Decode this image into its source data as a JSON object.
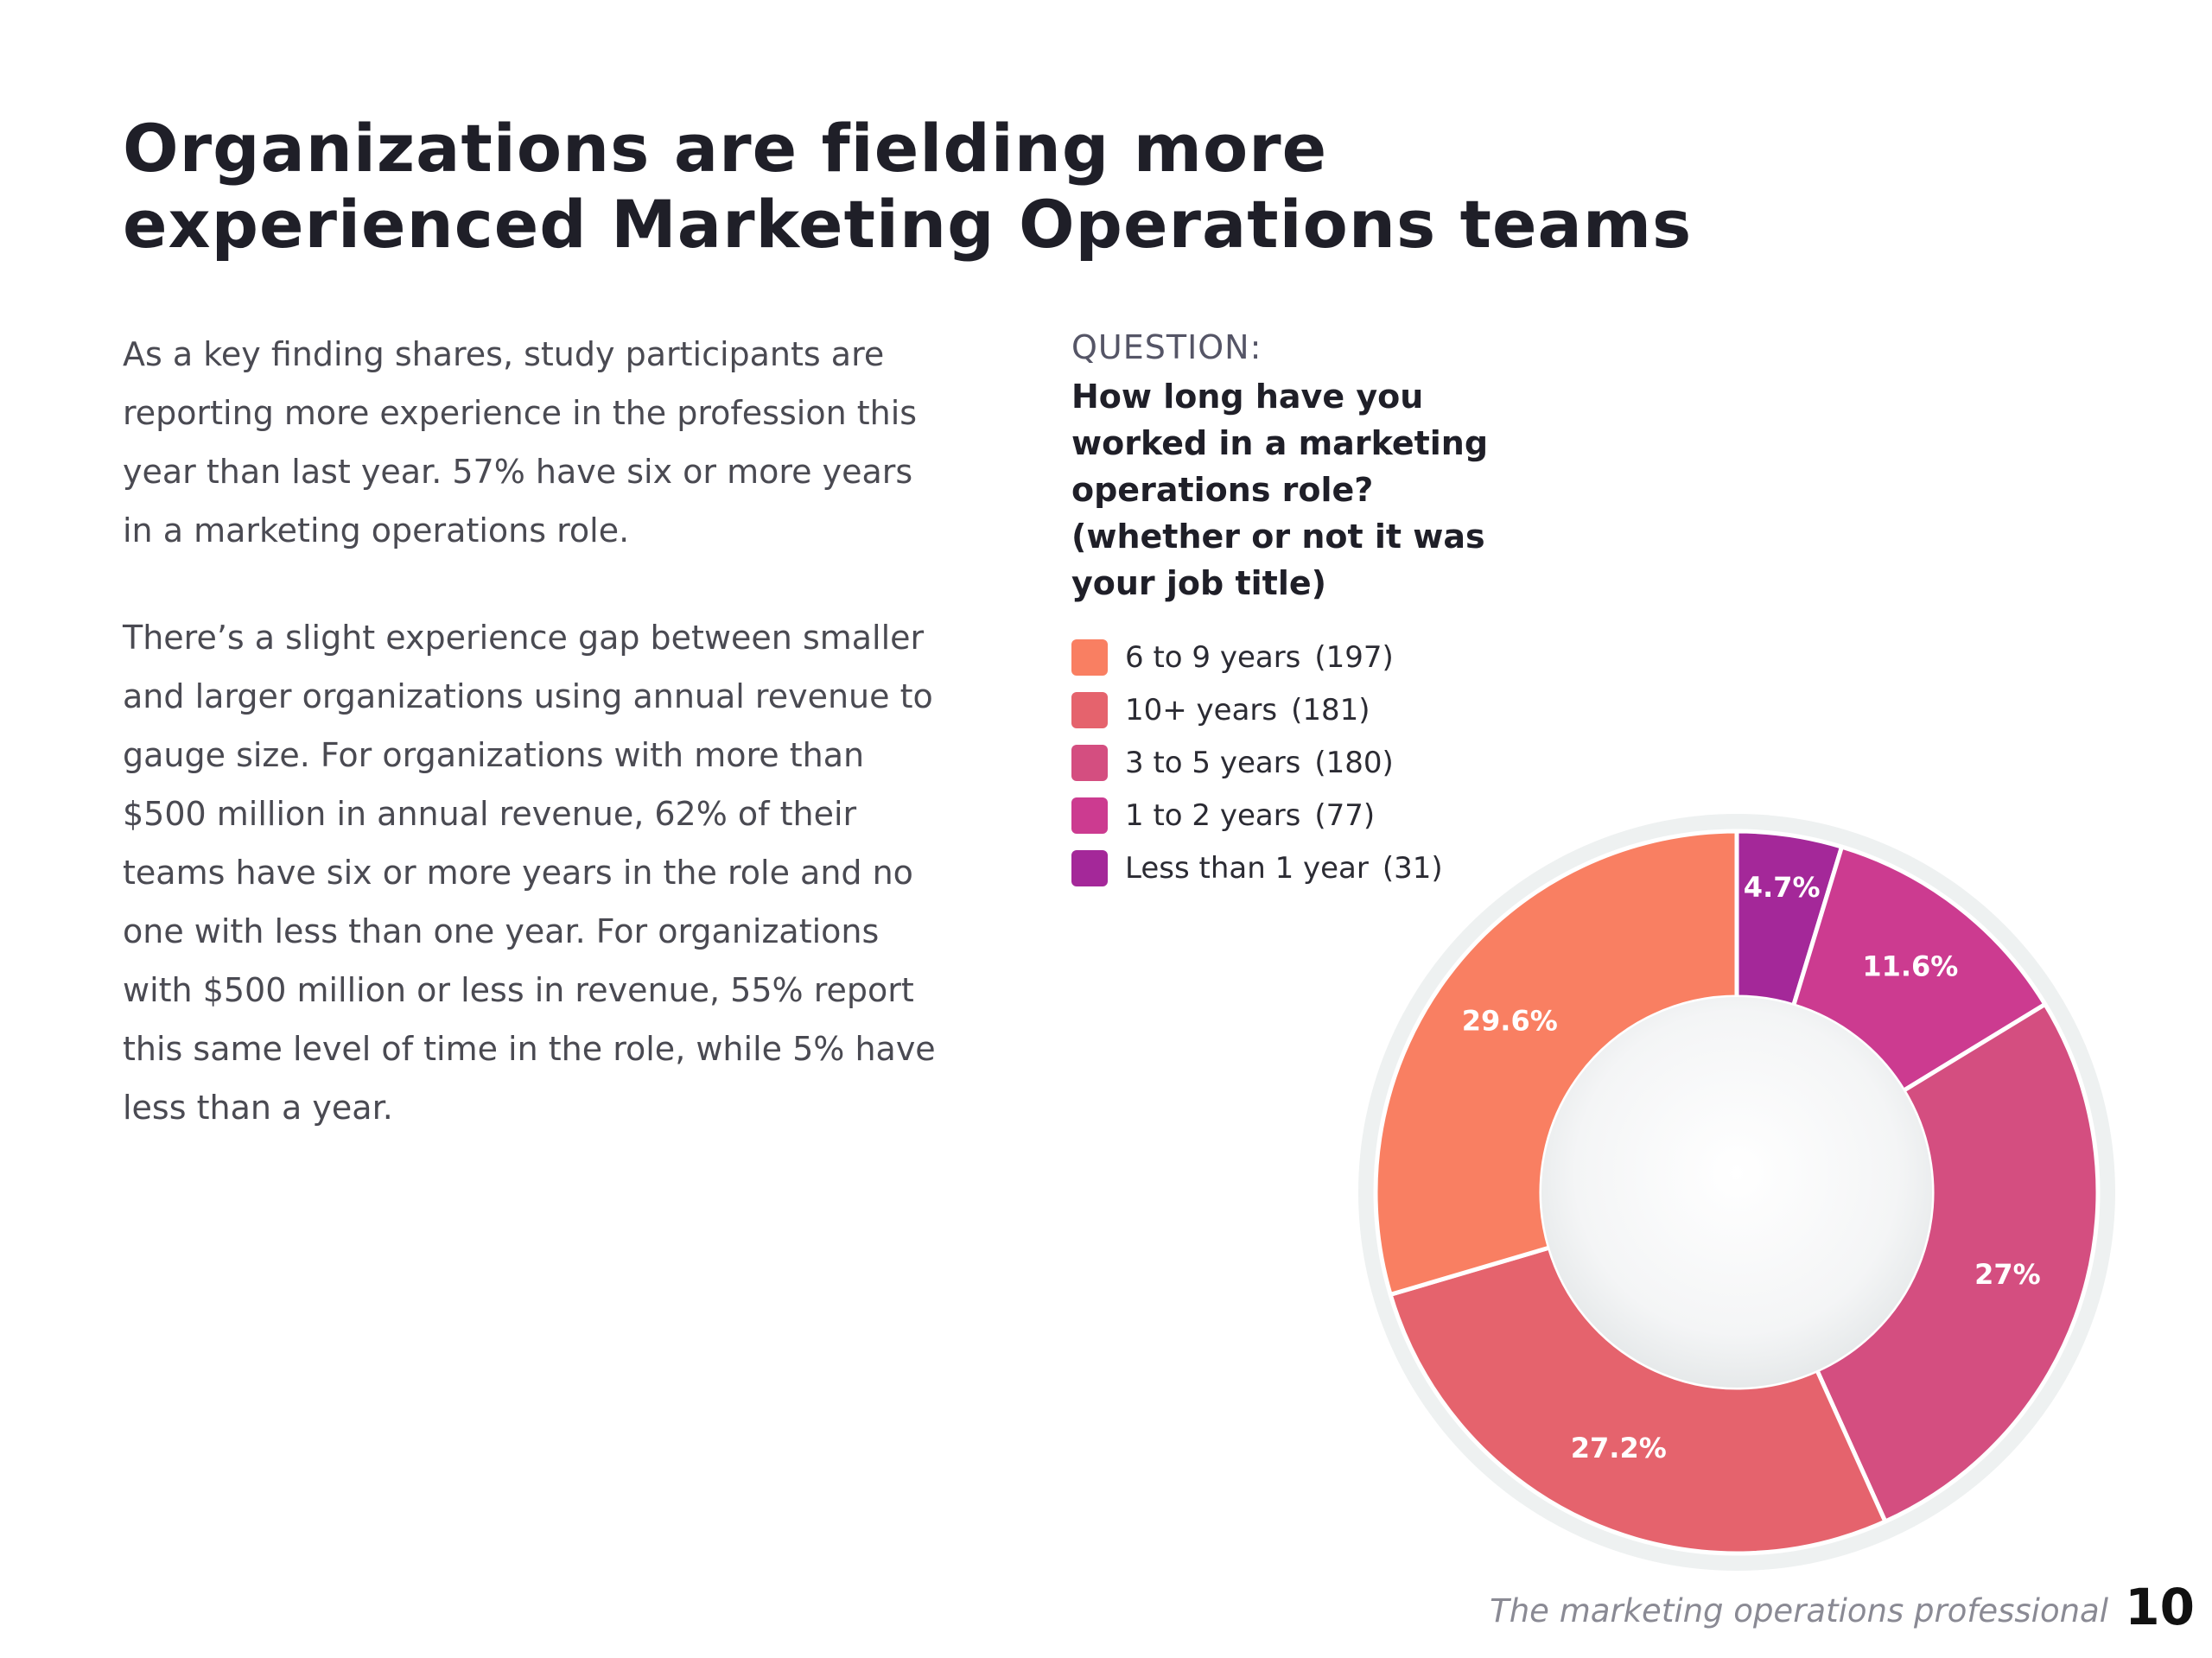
{
  "title": {
    "line1": "Organizations are fielding more",
    "line2": "experienced Marketing Operations teams"
  },
  "body": {
    "paragraph1": "As a key finding shares, study participants are reporting more experience in the profession this year than last year. 57% have six or more years in a marketing operations role.",
    "paragraph2": "There’s a slight experience gap between smaller and larger organizations using annual revenue to gauge size. For organizations with more than $500 million in annual revenue, 62% of their teams have six or more years in the role and no one with less than one year. For organizations with $500 million or less in revenue, 55% report this same level of time in the role, while 5% have less than a year."
  },
  "question": {
    "label": "QUESTION:",
    "text": "How long have you worked in a marketing operations role? (whether or not it was your job title)"
  },
  "chart_data": {
    "type": "pie",
    "variant": "donut",
    "title": "How long have you worked in a marketing operations role? (whether or not it was your job title)",
    "categories": [
      "6 to 9 years",
      "10+ years",
      "3 to 5 years",
      "1 to 2 years",
      "Less than 1 year"
    ],
    "counts": [
      197,
      181,
      180,
      77,
      31
    ],
    "count_labels": [
      "(197)",
      "(181)",
      "(180)",
      "(77)",
      "(31)"
    ],
    "values": [
      29.6,
      27.2,
      27,
      11.6,
      4.7
    ],
    "value_labels": [
      "29.6%",
      "27.2%",
      "27%",
      "11.6%",
      "4.7%"
    ],
    "colors": [
      "#f97f62",
      "#e5636d",
      "#d44e80",
      "#cc3b90",
      "#a42899"
    ],
    "legend_position": "top-left"
  },
  "footer": {
    "text": "The marketing operations professional",
    "page_number": "10"
  }
}
